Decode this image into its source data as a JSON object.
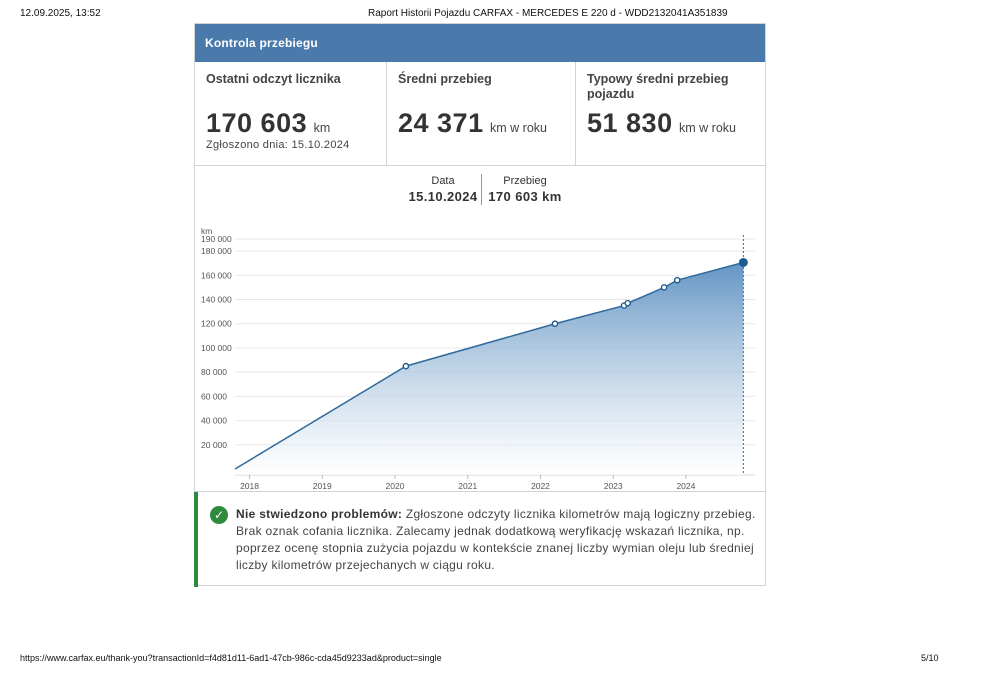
{
  "print": {
    "date": "12.09.2025, 13:52",
    "title": "Raport Historii Pojazdu CARFAX - MERCEDES E 220 d - WDD2132041A351839",
    "url": "https://www.carfax.eu/thank-you?transactionId=f4d81d11-6ad1-47cb-986c-cda45d9233ad&product=single",
    "page": "5/10"
  },
  "section": {
    "title": "Kontrola przebiegu"
  },
  "stats": {
    "last_reading": {
      "label": "Ostatni odczyt licznika",
      "value": "170 603",
      "unit": "km",
      "note": "Zgłoszono dnia: 15.10.2024"
    },
    "average": {
      "label": "Średni przebieg",
      "value": "24 371",
      "unit": "km w roku"
    },
    "typical": {
      "label": "Typowy średni przebieg pojazdu",
      "value": "51 830",
      "unit": "km w roku"
    }
  },
  "selected_reading": {
    "date_label": "Data",
    "date_value": "15.10.2024",
    "km_label": "Przebieg",
    "km_value": "170 603 km"
  },
  "chart_data": {
    "type": "area",
    "ylabel": "km",
    "y_ticks": [
      "20 000",
      "40 000",
      "60 000",
      "80 000",
      "100 000",
      "120 000",
      "140 000",
      "160 000",
      "180 000",
      "190 000"
    ],
    "x_ticks": [
      "2018",
      "2019",
      "2020",
      "2021",
      "2022",
      "2023",
      "2024"
    ],
    "ylim": [
      0,
      190000
    ],
    "xlim": [
      2017.8,
      2024.95
    ],
    "points": [
      {
        "x": 2017.7,
        "y": 0
      },
      {
        "x": 2020.15,
        "y": 85000
      },
      {
        "x": 2022.2,
        "y": 120000
      },
      {
        "x": 2023.15,
        "y": 135000
      },
      {
        "x": 2023.2,
        "y": 137000
      },
      {
        "x": 2023.7,
        "y": 150000
      },
      {
        "x": 2023.88,
        "y": 156000
      },
      {
        "x": 2024.79,
        "y": 170603
      }
    ],
    "selected_index": 7,
    "colors": {
      "line": "#2f6a9e",
      "fill_top": "#5b8fc0",
      "fill_bottom": "#ffffff",
      "grid": "#e8e8e8"
    }
  },
  "notice": {
    "title": "Nie stwiedzono problemów:",
    "text": "Zgłoszone odczyty licznika kilometrów mają logiczny przebieg. Brak oznak cofania licznika. Zalecamy jednak dodatkową weryfikację wskazań licznika, np. poprzez ocenę stopnia zużycia pojazdu w kontekście znanej liczby wymian oleju lub średniej liczby kilometrów przejechanych w ciągu roku."
  },
  "icons": {
    "status": "check-circle-icon"
  }
}
